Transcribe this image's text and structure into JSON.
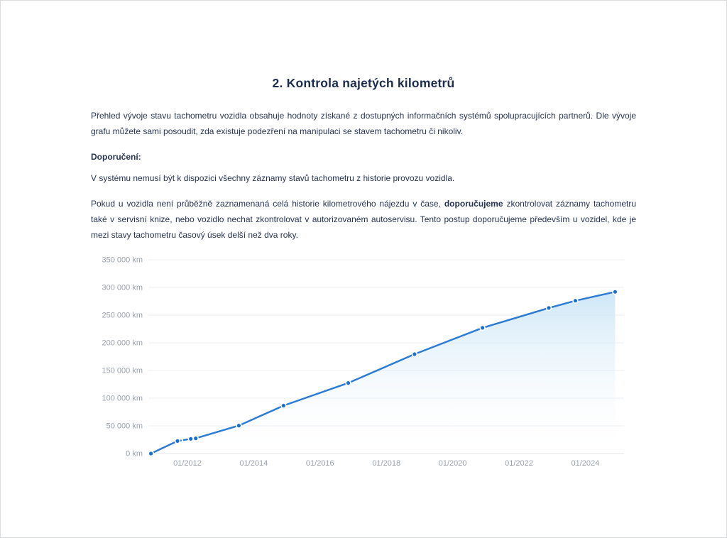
{
  "page": {
    "title": "2. Kontrola najetých kilometrů"
  },
  "content": {
    "intro": "Přehled vývoje stavu tachometru vozidla obsahuje hodnoty získané z dostupných informačních systémů spolupracujících partnerů. Dle vývoje grafu můžete sami posoudit, zda existuje podezření na manipulaci se stavem tachometru či nikoliv.",
    "recommendation_heading": "Doporučení:",
    "note": "V systému nemusí být k dispozici všechny záznamy stavů tachometru z historie provozu vozidla.",
    "advice": {
      "before_bold": "Pokud u vozidla není průběžně zaznamenaná celá historie kilometrového nájezdu v čase, ",
      "bold": "doporučujeme",
      "after_bold": " zkontrolovat záznamy tachometru také v servisní knize, nebo vozidlo nechat zkontrolovat v autorizovaném autoservisu. Tento postup doporučujeme především u vozidel, kde je mezi stavy tachometru časový úsek delší než dva roky."
    }
  },
  "chart_data": {
    "type": "area",
    "title": "",
    "xlabel": "",
    "ylabel": "km",
    "grid": true,
    "legend": false,
    "ylim": [
      0,
      350000
    ],
    "y_tick_step": 50000,
    "y_tick_labels": [
      "0 km",
      "50 000 km",
      "100 000 km",
      "150 000 km",
      "200 000 km",
      "250 000 km",
      "300 000 km",
      "350 000 km"
    ],
    "x_tick_labels": [
      "01/2012",
      "01/2014",
      "01/2016",
      "01/2018",
      "01/2020",
      "01/2022",
      "01/2024"
    ],
    "points": [
      {
        "t": 2010.9,
        "km": 0
      },
      {
        "t": 2011.7,
        "km": 22500
      },
      {
        "t": 2012.1,
        "km": 26500
      },
      {
        "t": 2012.25,
        "km": 27500
      },
      {
        "t": 2013.55,
        "km": 50500
      },
      {
        "t": 2014.9,
        "km": 86500
      },
      {
        "t": 2016.85,
        "km": 127500
      },
      {
        "t": 2018.85,
        "km": 179500
      },
      {
        "t": 2020.9,
        "km": 227000
      },
      {
        "t": 2022.9,
        "km": 263000
      },
      {
        "t": 2023.7,
        "km": 276000
      },
      {
        "t": 2024.9,
        "km": 292000
      }
    ],
    "dashed_segment_indexes": [
      1
    ],
    "colors": {
      "line": "#2b7cd4",
      "marker": "#1a6fd1",
      "marker_halo": "#ffffff",
      "area_top": "#c9e4f6",
      "area_bottom": "#ffffff",
      "grid": "#eaecf0",
      "zero_line": "#e0e4e9",
      "tick_text": "#99a1ad"
    }
  }
}
